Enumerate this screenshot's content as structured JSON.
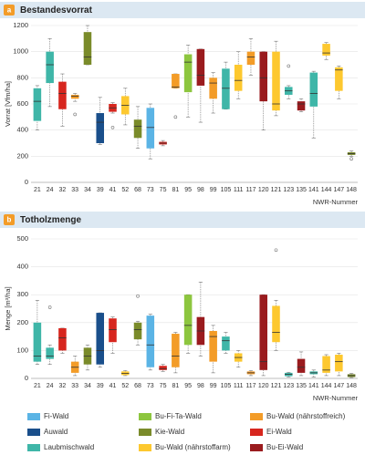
{
  "legend": [
    {
      "name": "Fi-Wald",
      "color": "#5bb4e5"
    },
    {
      "name": "Bu-Fi-Ta-Wald",
      "color": "#8dc63f"
    },
    {
      "name": "Bu-Wald (nährstoffreich)",
      "color": "#f39c28"
    },
    {
      "name": "Auwald",
      "color": "#1a4f8b"
    },
    {
      "name": "Kie-Wald",
      "color": "#7a8b2a"
    },
    {
      "name": "Ei-Wald",
      "color": "#d7261e"
    },
    {
      "name": "Laubmischwald",
      "color": "#3fb6a8"
    },
    {
      "name": "Bu-Wald (nährstoffarm)",
      "color": "#fdc82f"
    },
    {
      "name": "Bu-Ei-Wald",
      "color": "#9a1b1e"
    }
  ],
  "chart_data": [
    {
      "type": "box",
      "badge": "a",
      "title": "Bestandesvorrat",
      "ylabel": "Vorrat [Vfm/ha]",
      "xlabel": "NWR-Nummer",
      "categories": [
        "21",
        "24",
        "32",
        "33",
        "34",
        "39",
        "41",
        "52",
        "68",
        "73",
        "75",
        "81",
        "95",
        "98",
        "99",
        "105",
        "111",
        "117",
        "120",
        "121",
        "123",
        "135",
        "141",
        "144",
        "147",
        "148"
      ],
      "groups": [
        6,
        6,
        5,
        2,
        4,
        3,
        5,
        7,
        4,
        0,
        5,
        2,
        1,
        8,
        2,
        6,
        7,
        2,
        8,
        7,
        6,
        8,
        6,
        7,
        7,
        4
      ],
      "ylim": [
        0,
        1200
      ],
      "yticks": [
        0,
        200,
        400,
        600,
        800,
        1000,
        1200
      ],
      "grid": true,
      "boxes": [
        {
          "min": 400,
          "q1": 470,
          "median": 620,
          "q3": 720,
          "max": 740,
          "outliers": []
        },
        {
          "min": 580,
          "q1": 760,
          "median": 900,
          "q3": 1000,
          "max": 1100,
          "outliers": []
        },
        {
          "min": 430,
          "q1": 560,
          "median": 680,
          "q3": 770,
          "max": 830,
          "outliers": []
        },
        {
          "min": 620,
          "q1": 640,
          "median": 660,
          "q3": 670,
          "max": 680,
          "outliers": [
            520
          ]
        },
        {
          "min": 900,
          "q1": 900,
          "median": 960,
          "q3": 1150,
          "max": 1200,
          "outliers": []
        },
        {
          "min": 290,
          "q1": 300,
          "median": 460,
          "q3": 530,
          "max": 650,
          "outliers": []
        },
        {
          "min": 530,
          "q1": 540,
          "median": 570,
          "q3": 600,
          "max": 610,
          "outliers": [
            420
          ]
        },
        {
          "min": 440,
          "q1": 520,
          "median": 590,
          "q3": 660,
          "max": 720,
          "outliers": []
        },
        {
          "min": 260,
          "q1": 340,
          "median": 430,
          "q3": 480,
          "max": 580,
          "outliers": []
        },
        {
          "min": 180,
          "q1": 260,
          "median": 420,
          "q3": 570,
          "max": 600,
          "outliers": []
        },
        {
          "min": 280,
          "q1": 290,
          "median": 300,
          "q3": 310,
          "max": 320,
          "outliers": []
        },
        {
          "min": 720,
          "q1": 720,
          "median": 730,
          "q3": 830,
          "max": 830,
          "outliers": [
            500
          ]
        },
        {
          "min": 500,
          "q1": 690,
          "median": 920,
          "q3": 980,
          "max": 1050,
          "outliers": []
        },
        {
          "min": 460,
          "q1": 740,
          "median": 820,
          "q3": 1020,
          "max": 1020,
          "outliers": []
        },
        {
          "min": 530,
          "q1": 640,
          "median": 760,
          "q3": 800,
          "max": 840,
          "outliers": []
        },
        {
          "min": 560,
          "q1": 560,
          "median": 720,
          "q3": 870,
          "max": 920,
          "outliers": []
        },
        {
          "min": 640,
          "q1": 700,
          "median": 780,
          "q3": 900,
          "max": 1000,
          "outliers": []
        },
        {
          "min": 820,
          "q1": 900,
          "median": 960,
          "q3": 1000,
          "max": 1100,
          "outliers": []
        },
        {
          "min": 400,
          "q1": 620,
          "median": 800,
          "q3": 1000,
          "max": 1000,
          "outliers": []
        },
        {
          "min": 510,
          "q1": 550,
          "median": 600,
          "q3": 1000,
          "max": 1080,
          "outliers": []
        },
        {
          "min": 640,
          "q1": 670,
          "median": 700,
          "q3": 730,
          "max": 740,
          "outliers": [
            890
          ]
        },
        {
          "min": 540,
          "q1": 550,
          "median": 600,
          "q3": 620,
          "max": 640,
          "outliers": []
        },
        {
          "min": 340,
          "q1": 580,
          "median": 680,
          "q3": 840,
          "max": 850,
          "outliers": []
        },
        {
          "min": 940,
          "q1": 970,
          "median": 990,
          "q3": 1060,
          "max": 1070,
          "outliers": []
        },
        {
          "min": 640,
          "q1": 700,
          "median": 860,
          "q3": 880,
          "max": 890,
          "outliers": []
        },
        {
          "min": 200,
          "q1": 210,
          "median": 220,
          "q3": 230,
          "max": 240,
          "outliers": [
            180
          ]
        }
      ]
    },
    {
      "type": "box",
      "badge": "b",
      "title": "Totholzmenge",
      "ylabel": "Menge [m³/ha]",
      "xlabel": "NWR-Nummer",
      "categories": [
        "21",
        "24",
        "32",
        "33",
        "34",
        "39",
        "41",
        "52",
        "68",
        "73",
        "75",
        "81",
        "95",
        "98",
        "99",
        "105",
        "111",
        "117",
        "120",
        "121",
        "123",
        "135",
        "141",
        "144",
        "147",
        "148"
      ],
      "groups": [
        6,
        6,
        5,
        2,
        4,
        3,
        5,
        7,
        4,
        0,
        5,
        2,
        1,
        8,
        2,
        6,
        7,
        2,
        8,
        7,
        6,
        8,
        6,
        7,
        7,
        4
      ],
      "ylim": [
        0,
        500
      ],
      "yticks": [
        0,
        100,
        200,
        300,
        400,
        500
      ],
      "grid": true,
      "boxes": [
        {
          "min": 50,
          "q1": 60,
          "median": 80,
          "q3": 200,
          "max": 280,
          "outliers": []
        },
        {
          "min": 50,
          "q1": 70,
          "median": 80,
          "q3": 110,
          "max": 120,
          "outliers": [
            255
          ]
        },
        {
          "min": 90,
          "q1": 100,
          "median": 145,
          "q3": 180,
          "max": 180,
          "outliers": []
        },
        {
          "min": 10,
          "q1": 20,
          "median": 40,
          "q3": 60,
          "max": 80,
          "outliers": []
        },
        {
          "min": 30,
          "q1": 50,
          "median": 80,
          "q3": 110,
          "max": 120,
          "outliers": []
        },
        {
          "min": 40,
          "q1": 50,
          "median": 100,
          "q3": 235,
          "max": 235,
          "outliers": []
        },
        {
          "min": 90,
          "q1": 130,
          "median": 175,
          "q3": 215,
          "max": 220,
          "outliers": []
        },
        {
          "min": 10,
          "q1": 12,
          "median": 18,
          "q3": 25,
          "max": 28,
          "outliers": []
        },
        {
          "min": 120,
          "q1": 140,
          "median": 175,
          "q3": 200,
          "max": 205,
          "outliers": [
            295
          ]
        },
        {
          "min": 30,
          "q1": 40,
          "median": 120,
          "q3": 225,
          "max": 230,
          "outliers": []
        },
        {
          "min": 25,
          "q1": 30,
          "median": 35,
          "q3": 45,
          "max": 50,
          "outliers": []
        },
        {
          "min": 20,
          "q1": 40,
          "median": 80,
          "q3": 160,
          "max": 165,
          "outliers": []
        },
        {
          "min": 90,
          "q1": 120,
          "median": 190,
          "q3": 300,
          "max": 300,
          "outliers": []
        },
        {
          "min": 80,
          "q1": 120,
          "median": 170,
          "q3": 220,
          "max": 345,
          "outliers": []
        },
        {
          "min": 20,
          "q1": 60,
          "median": 150,
          "q3": 170,
          "max": 190,
          "outliers": []
        },
        {
          "min": 90,
          "q1": 100,
          "median": 135,
          "q3": 150,
          "max": 165,
          "outliers": []
        },
        {
          "min": 40,
          "q1": 60,
          "median": 75,
          "q3": 90,
          "max": 100,
          "outliers": []
        },
        {
          "min": 10,
          "q1": 15,
          "median": 20,
          "q3": 25,
          "max": 28,
          "outliers": []
        },
        {
          "min": 10,
          "q1": 30,
          "median": 60,
          "q3": 300,
          "max": 300,
          "outliers": []
        },
        {
          "min": 100,
          "q1": 130,
          "median": 165,
          "q3": 260,
          "max": 280,
          "outliers": [
            460
          ]
        },
        {
          "min": 5,
          "q1": 8,
          "median": 15,
          "q3": 20,
          "max": 22,
          "outliers": []
        },
        {
          "min": 10,
          "q1": 20,
          "median": 40,
          "q3": 70,
          "max": 95,
          "outliers": []
        },
        {
          "min": 5,
          "q1": 15,
          "median": 20,
          "q3": 25,
          "max": 30,
          "outliers": []
        },
        {
          "min": 10,
          "q1": 20,
          "median": 30,
          "q3": 80,
          "max": 85,
          "outliers": []
        },
        {
          "min": 10,
          "q1": 25,
          "median": 60,
          "q3": 85,
          "max": 90,
          "outliers": []
        },
        {
          "min": 3,
          "q1": 5,
          "median": 10,
          "q3": 15,
          "max": 18,
          "outliers": []
        }
      ]
    }
  ]
}
